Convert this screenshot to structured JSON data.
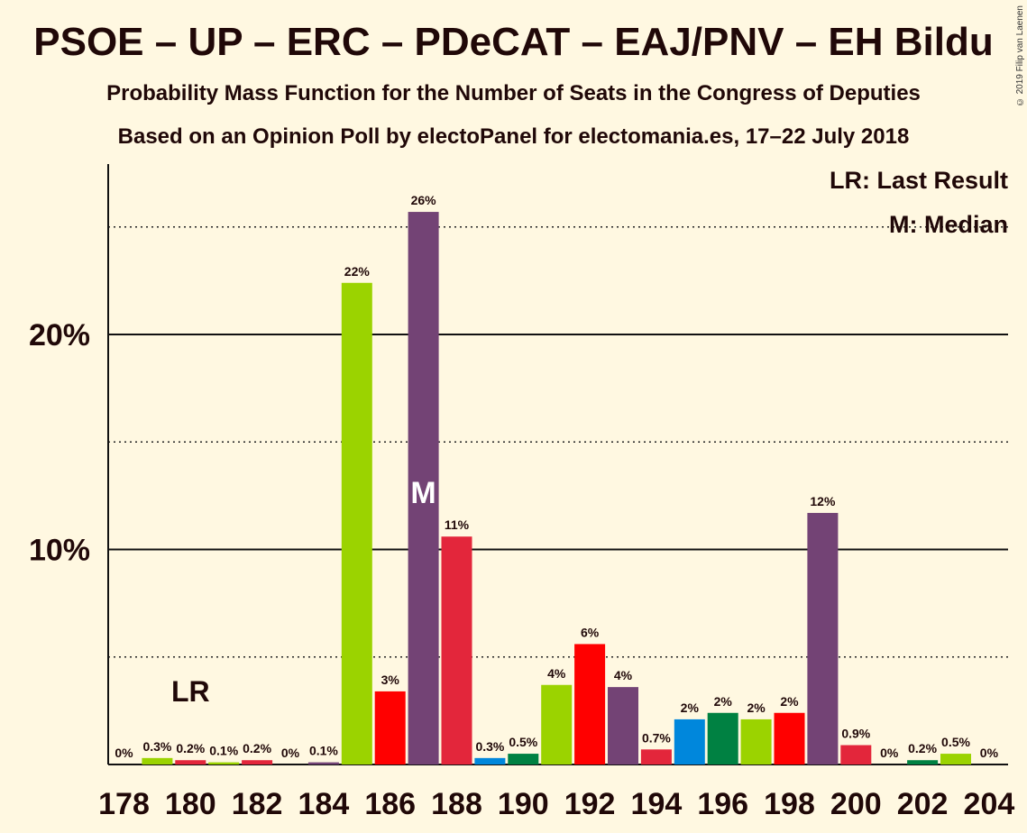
{
  "title": "PSOE – UP – ERC – PDeCAT – EAJ/PNV – EH Bildu",
  "subtitle": "Probability Mass Function for the Number of Seats in the Congress of Deputies",
  "subtitle2": "Based on an Opinion Poll by electoPanel for electomania.es, 17–22 July 2018",
  "copyright": "© 2019 Filip van Laenen",
  "legend": {
    "lr": "LR: Last Result",
    "median": "M: Median"
  },
  "markers": {
    "lr_label": "LR",
    "lr_seat": 180,
    "median_label": "M",
    "median_seat": 187
  },
  "chart_data": {
    "type": "bar",
    "x": [
      178,
      179,
      180,
      181,
      182,
      183,
      184,
      185,
      186,
      187,
      188,
      189,
      190,
      191,
      192,
      193,
      194,
      195,
      196,
      197,
      198,
      199,
      200,
      201,
      202,
      203,
      204
    ],
    "values": [
      0,
      0.3,
      0.2,
      0.1,
      0.2,
      0,
      0.1,
      22.4,
      3.4,
      25.7,
      10.6,
      0.3,
      0.5,
      3.7,
      5.6,
      3.6,
      0.7,
      2.1,
      2.4,
      2.1,
      2.4,
      11.7,
      0.9,
      0,
      0.2,
      0.5,
      0
    ],
    "labels": [
      "0%",
      "0.3%",
      "0.2%",
      "0.1%",
      "0.2%",
      "0%",
      "0.1%",
      "22%",
      "3%",
      "26%",
      "11%",
      "0.3%",
      "0.5%",
      "4%",
      "6%",
      "4%",
      "0.7%",
      "2%",
      "2%",
      "2%",
      "2%",
      "12%",
      "0.9%",
      "0%",
      "0.2%",
      "0.5%",
      "0%"
    ],
    "colors": [
      "#e3263b",
      "#9bd300",
      "#e3263b",
      "#9bd300",
      "#e3263b",
      "#e3263b",
      "#734375",
      "#9bd300",
      "#ff0000",
      "#734375",
      "#e3263b",
      "#0087dc",
      "#008142",
      "#9bd300",
      "#ff0000",
      "#734375",
      "#e3263b",
      "#0087dc",
      "#008142",
      "#9bd300",
      "#ff0000",
      "#734375",
      "#e3263b",
      "#ff0000",
      "#008142",
      "#9bd300",
      "#e3263b"
    ],
    "x_tick_labels": [
      "178",
      "180",
      "182",
      "184",
      "186",
      "188",
      "190",
      "192",
      "194",
      "196",
      "198",
      "200",
      "202",
      "204"
    ],
    "y_tick_labels": [
      "10%",
      "20%"
    ],
    "y_ticks": [
      10,
      20
    ],
    "y_minor_ticks": [
      5,
      15,
      25
    ],
    "ylim": [
      0,
      28
    ],
    "grid": true
  }
}
